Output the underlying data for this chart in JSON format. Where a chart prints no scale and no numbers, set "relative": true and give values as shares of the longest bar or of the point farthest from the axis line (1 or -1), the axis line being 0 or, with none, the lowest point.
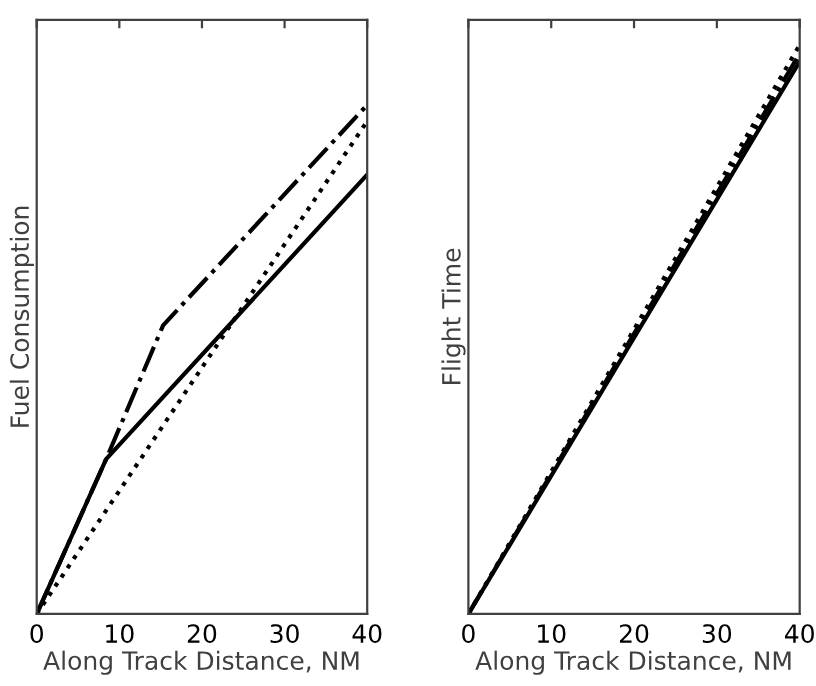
{
  "chart_data": [
    {
      "type": "line",
      "relative": true,
      "xlabel": "Along Track Distance, NM",
      "ylabel": "Fuel Consumption",
      "xlim": [
        0,
        40
      ],
      "xticks": [
        0,
        10,
        20,
        30,
        40
      ],
      "grid": false,
      "legend": false,
      "marker": "none",
      "series": [
        {
          "color": "#000000",
          "line_style": "solid",
          "x": [
            0,
            8.4,
            40
          ],
          "values": [
            0,
            0.304,
            0.863
          ]
        },
        {
          "color": "#000000",
          "line_style": "dashdot",
          "x": [
            0,
            8.4,
            15.3,
            40
          ],
          "values": [
            0,
            0.304,
            0.567,
            1.0
          ]
        },
        {
          "color": "#000000",
          "line_style": "dotted",
          "x": [
            0,
            40
          ],
          "values": [
            0,
            0.968
          ]
        }
      ]
    },
    {
      "type": "line",
      "relative": true,
      "xlabel": "Along Track Distance, NM",
      "ylabel": "Flight Time",
      "xlim": [
        0,
        40
      ],
      "xticks": [
        0,
        10,
        20,
        30,
        40
      ],
      "grid": false,
      "legend": false,
      "marker": "none",
      "series": [
        {
          "color": "#000000",
          "line_style": "solid",
          "x": [
            0,
            40
          ],
          "values": [
            0,
            0.971
          ]
        },
        {
          "color": "#000000",
          "line_style": "dashdot",
          "x": [
            0,
            40
          ],
          "values": [
            0,
            0.985
          ]
        },
        {
          "color": "#000000",
          "line_style": "dotted",
          "x": [
            0,
            40
          ],
          "values": [
            0,
            1.0
          ]
        }
      ]
    }
  ]
}
